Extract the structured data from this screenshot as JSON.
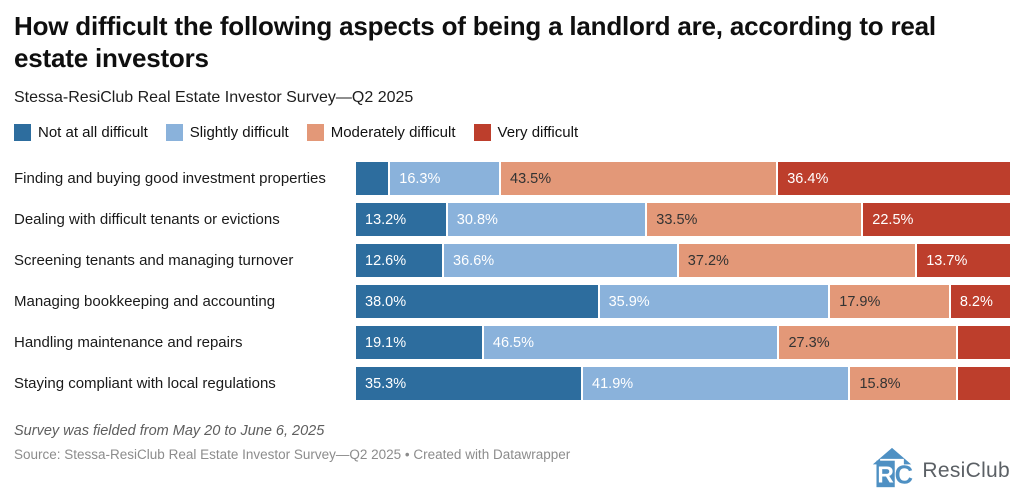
{
  "header": {
    "title": "How difficult the following aspects of being a landlord are, according to real estate investors",
    "subtitle": "Stessa-ResiClub Real Estate Investor Survey—Q2 2025"
  },
  "legend": {
    "items": [
      {
        "label": "Not at all difficult",
        "color": "#2d6d9e",
        "text_color": "#ffffff"
      },
      {
        "label": "Slightly difficult",
        "color": "#8ab2db",
        "text_color": "#ffffff"
      },
      {
        "label": "Moderately difficult",
        "color": "#e39878",
        "text_color": "#333333"
      },
      {
        "label": "Very difficult",
        "color": "#bd3e2c",
        "text_color": "#ffffff"
      }
    ]
  },
  "chart_data": {
    "type": "bar",
    "orientation": "horizontal",
    "stacked": true,
    "grid": false,
    "legend_position": "top",
    "xlim": [
      0,
      100
    ],
    "unit": "%",
    "categories": [
      "Finding and buying good investment properties",
      "Dealing with difficult tenants or evictions",
      "Screening tenants and managing turnover",
      "Managing bookkeeping and accounting",
      "Handling maintenance and repairs",
      "Staying compliant with local regulations"
    ],
    "series": [
      {
        "name": "Not at all difficult",
        "color": "#2d6d9e",
        "values": [
          3.8,
          13.2,
          12.6,
          38.0,
          19.1,
          35.3
        ]
      },
      {
        "name": "Slightly difficult",
        "color": "#8ab2db",
        "values": [
          16.3,
          30.8,
          36.6,
          35.9,
          46.5,
          41.9
        ]
      },
      {
        "name": "Moderately difficult",
        "color": "#e39878",
        "values": [
          43.5,
          33.5,
          37.2,
          17.9,
          27.3,
          15.8
        ]
      },
      {
        "name": "Very difficult",
        "color": "#bd3e2c",
        "values": [
          36.4,
          22.5,
          13.7,
          8.2,
          7.1,
          7.0
        ]
      }
    ],
    "data_labels": [
      [
        "",
        "16.3%",
        "43.5%",
        "36.4%"
      ],
      [
        "13.2%",
        "30.8%",
        "33.5%",
        "22.5%"
      ],
      [
        "12.6%",
        "36.6%",
        "37.2%",
        "13.7%"
      ],
      [
        "38.0%",
        "35.9%",
        "17.9%",
        "8.2%"
      ],
      [
        "19.1%",
        "46.5%",
        "27.3%",
        ""
      ],
      [
        "35.3%",
        "41.9%",
        "15.8%",
        ""
      ]
    ]
  },
  "footer": {
    "note": "Survey was fielded from May 20 to June 6, 2025",
    "source": "Source: Stessa-ResiClub Real Estate Investor Survey—Q2 2025 • Created with Datawrapper",
    "logo_text": "ResiClub"
  },
  "logo": {
    "icon_color": "#4e90c3"
  }
}
